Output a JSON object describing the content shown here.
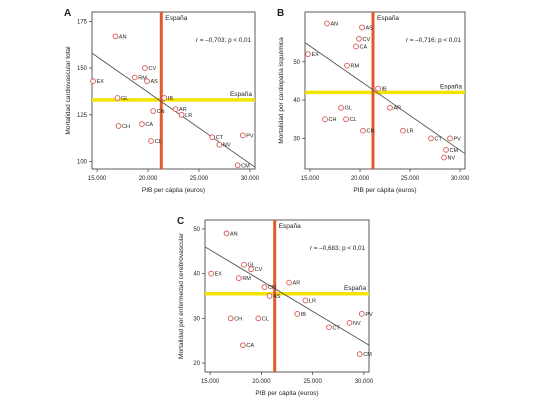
{
  "chart_data": [
    {
      "panel_label": "A",
      "type": "scatter",
      "xlabel": "PIB per cápita (euros)",
      "ylabel": "Mortalidad cardiovascular total",
      "xlim": [
        14500,
        30500
      ],
      "ylim": [
        96,
        180
      ],
      "xticks": [
        15000,
        20000,
        25000,
        30000
      ],
      "xtick_labels": [
        "15.000",
        "20.000",
        "25.000",
        "30.000"
      ],
      "yticks": [
        100,
        125,
        150,
        175
      ],
      "yticks_labels": [
        "100",
        "125",
        "150",
        "175"
      ],
      "annotation": "r = –0,703; p < 0,01",
      "vline": {
        "x": 21300,
        "label": "España"
      },
      "hline": {
        "y": 133,
        "label": "España"
      },
      "trend": {
        "x": [
          14500,
          30500
        ],
        "y": [
          158,
          97
        ]
      },
      "points": [
        {
          "label": "AN",
          "x": 16800,
          "y": 167
        },
        {
          "label": "EX",
          "x": 14600,
          "y": 143
        },
        {
          "label": "CV",
          "x": 19700,
          "y": 150
        },
        {
          "label": "RM",
          "x": 18700,
          "y": 145
        },
        {
          "label": "AS",
          "x": 19900,
          "y": 143
        },
        {
          "label": "GL",
          "x": 17000,
          "y": 134
        },
        {
          "label": "IB",
          "x": 21600,
          "y": 134
        },
        {
          "label": "CN",
          "x": 20500,
          "y": 127
        },
        {
          "label": "AR",
          "x": 22700,
          "y": 128
        },
        {
          "label": "LR",
          "x": 23300,
          "y": 125
        },
        {
          "label": "CH",
          "x": 17100,
          "y": 119
        },
        {
          "label": "CA",
          "x": 19400,
          "y": 120
        },
        {
          "label": "CL",
          "x": 20300,
          "y": 111
        },
        {
          "label": "CT",
          "x": 26300,
          "y": 113
        },
        {
          "label": "NV",
          "x": 27000,
          "y": 109
        },
        {
          "label": "PV",
          "x": 29300,
          "y": 114
        },
        {
          "label": "CM",
          "x": 28800,
          "y": 98
        }
      ]
    },
    {
      "panel_label": "B",
      "type": "scatter",
      "xlabel": "PIB per cápita (euros)",
      "ylabel": "Mortalidad por cardiopatía isquémica",
      "xlim": [
        14500,
        30500
      ],
      "ylim": [
        22,
        63
      ],
      "xticks": [
        15000,
        20000,
        25000,
        30000
      ],
      "xtick_labels": [
        "15.000",
        "20.000",
        "25.000",
        "30.000"
      ],
      "yticks": [
        30,
        40,
        50
      ],
      "yticks_labels": [
        "30",
        "40",
        "50"
      ],
      "annotation": "r = –0,716; p < 0,01",
      "vline": {
        "x": 21300,
        "label": "España"
      },
      "hline": {
        "y": 42,
        "label": "España"
      },
      "trend": {
        "x": [
          14500,
          30500
        ],
        "y": [
          55,
          26
        ]
      },
      "points": [
        {
          "label": "AN",
          "x": 16700,
          "y": 60
        },
        {
          "label": "AS",
          "x": 20200,
          "y": 59
        },
        {
          "label": "CV",
          "x": 19900,
          "y": 56
        },
        {
          "label": "CA",
          "x": 19600,
          "y": 54
        },
        {
          "label": "EX",
          "x": 14800,
          "y": 52
        },
        {
          "label": "RM",
          "x": 18700,
          "y": 49
        },
        {
          "label": "IB",
          "x": 21800,
          "y": 43
        },
        {
          "label": "AR",
          "x": 23000,
          "y": 38
        },
        {
          "label": "GL",
          "x": 18100,
          "y": 38
        },
        {
          "label": "CH",
          "x": 16500,
          "y": 35
        },
        {
          "label": "CL",
          "x": 18600,
          "y": 35
        },
        {
          "label": "CN",
          "x": 20300,
          "y": 32
        },
        {
          "label": "LR",
          "x": 24300,
          "y": 32
        },
        {
          "label": "CT",
          "x": 27100,
          "y": 30
        },
        {
          "label": "PV",
          "x": 29000,
          "y": 30
        },
        {
          "label": "CM",
          "x": 28600,
          "y": 27
        },
        {
          "label": "NV",
          "x": 28400,
          "y": 25
        }
      ]
    },
    {
      "panel_label": "C",
      "type": "scatter",
      "xlabel": "PIB per cápita (euros)",
      "ylabel": "Mortalidad por enfermedad cerebrovascular",
      "xlim": [
        14500,
        30500
      ],
      "ylim": [
        18,
        52
      ],
      "xticks": [
        15000,
        20000,
        25000,
        30000
      ],
      "xtick_labels": [
        "15.000",
        "20.000",
        "25.000",
        "30.000"
      ],
      "yticks": [
        20,
        30,
        40,
        50
      ],
      "yticks_labels": [
        "20",
        "30",
        "40",
        "50"
      ],
      "annotation": "r = –0,683; p < 0,01",
      "vline": {
        "x": 21300,
        "label": "España"
      },
      "hline": {
        "y": 35.5,
        "label": "España"
      },
      "trend": {
        "x": [
          14500,
          30500
        ],
        "y": [
          46,
          24
        ]
      },
      "points": [
        {
          "label": "AN",
          "x": 16600,
          "y": 49
        },
        {
          "label": "GL",
          "x": 18300,
          "y": 42
        },
        {
          "label": "CV",
          "x": 19000,
          "y": 41
        },
        {
          "label": "EX",
          "x": 15100,
          "y": 40
        },
        {
          "label": "RM",
          "x": 17800,
          "y": 39
        },
        {
          "label": "AR",
          "x": 22700,
          "y": 38
        },
        {
          "label": "CN",
          "x": 20300,
          "y": 37
        },
        {
          "label": "AS",
          "x": 20800,
          "y": 35
        },
        {
          "label": "LR",
          "x": 24300,
          "y": 34
        },
        {
          "label": "IB",
          "x": 23500,
          "y": 31
        },
        {
          "label": "PV",
          "x": 29800,
          "y": 31
        },
        {
          "label": "CH",
          "x": 17000,
          "y": 30
        },
        {
          "label": "CL",
          "x": 19700,
          "y": 30
        },
        {
          "label": "NV",
          "x": 28600,
          "y": 29
        },
        {
          "label": "CT",
          "x": 26600,
          "y": 28
        },
        {
          "label": "CA",
          "x": 18200,
          "y": 24
        },
        {
          "label": "CM",
          "x": 29600,
          "y": 22
        }
      ]
    }
  ],
  "colors": {
    "vline": "#e05a2b",
    "hline": "#f2e400",
    "trend": "#555555",
    "marker": "#d9534f",
    "axis": "#333333",
    "text": "#222222"
  }
}
